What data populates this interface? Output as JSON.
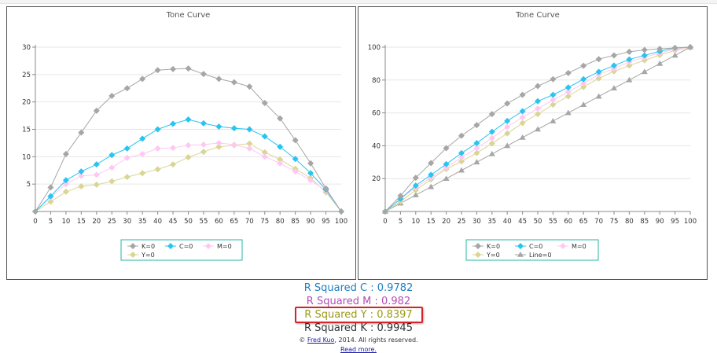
{
  "charts": [
    {
      "chart_data": {
        "type": "line",
        "title": "Tone Curve",
        "x": [
          0,
          5,
          10,
          15,
          20,
          25,
          30,
          35,
          40,
          45,
          50,
          55,
          60,
          65,
          70,
          75,
          80,
          85,
          90,
          95,
          100
        ],
        "ylim": [
          0,
          30
        ],
        "yticks": [
          5,
          10,
          15,
          20,
          25,
          30
        ],
        "legend_position": "bottom",
        "series": [
          {
            "name": "K=0",
            "color": "#a6a6a6",
            "marker": "diamond",
            "values": [
              0,
              4.4,
              10.5,
              14.4,
              18.4,
              21.1,
              22.5,
              24.2,
              25.8,
              26,
              26.1,
              25.1,
              24.2,
              23.6,
              22.8,
              19.8,
              17,
              13,
              8.8,
              4.2,
              0
            ]
          },
          {
            "name": "C=0",
            "color": "#29c4f0",
            "marker": "diamond",
            "values": [
              0,
              2.8,
              5.7,
              7.3,
              8.6,
              10.3,
              11.5,
              13.3,
              15,
              16,
              16.8,
              16.1,
              15.5,
              15.2,
              15,
              13.7,
              11.8,
              9.6,
              7,
              4,
              0
            ]
          },
          {
            "name": "M=0",
            "color": "#ffc8f2",
            "marker": "diamond",
            "values": [
              0,
              2.6,
              5,
              6.5,
              6.7,
              8,
              9.8,
              10.5,
              11.5,
              11.6,
              12.1,
              12.2,
              12.5,
              12.2,
              11.5,
              10,
              8.8,
              7.3,
              5.7,
              3.8,
              0
            ]
          },
          {
            "name": "Y=0",
            "color": "#d9d694",
            "marker": "diamond",
            "values": [
              0,
              1.8,
              3.6,
              4.6,
              4.9,
              5.5,
              6.3,
              7,
              7.7,
              8.6,
              9.9,
              10.9,
              11.8,
              12.1,
              12.4,
              10.8,
              9.5,
              7.8,
              6.1,
              3.5,
              0
            ]
          }
        ]
      }
    },
    {
      "chart_data": {
        "type": "line",
        "title": "Tone Curve",
        "x": [
          0,
          5,
          10,
          15,
          20,
          25,
          30,
          35,
          40,
          45,
          50,
          55,
          60,
          65,
          70,
          75,
          80,
          85,
          90,
          95,
          100
        ],
        "ylim": [
          0,
          100
        ],
        "yticks": [
          20,
          40,
          60,
          80,
          100
        ],
        "legend_position": "bottom",
        "series": [
          {
            "name": "K=0",
            "color": "#a6a6a6",
            "marker": "diamond",
            "values": [
              0,
              9.5,
              20.5,
              29.5,
              38.5,
              46.1,
              52.6,
              59.3,
              65.7,
              71,
              76.3,
              80.5,
              84.3,
              88.7,
              92.7,
              95,
              97.2,
              98.3,
              99,
              99.5,
              100
            ]
          },
          {
            "name": "C=0",
            "color": "#29c4f0",
            "marker": "diamond",
            "values": [
              0,
              7.7,
              15.8,
              22.3,
              28.8,
              35.5,
              41.6,
              48.5,
              55.1,
              61,
              67.1,
              71,
              75.5,
              80.5,
              85,
              88.8,
              92.5,
              95,
              97.5,
              99.5,
              100
            ]
          },
          {
            "name": "M=0",
            "color": "#ffc8f2",
            "marker": "diamond",
            "values": [
              0,
              7.5,
              14.8,
              20.5,
              26.8,
              32.8,
              38.5,
              44.7,
              51.5,
              57.3,
              62.6,
              67.8,
              72.8,
              78,
              83.3,
              87,
              91,
              93.8,
              96.5,
              98.7,
              100
            ]
          },
          {
            "name": "Y=0",
            "color": "#d9d694",
            "marker": "diamond",
            "values": [
              0,
              6,
              13,
              19.5,
              25.8,
              30.5,
              35.6,
              41.4,
              47.5,
              53.8,
              59.3,
              65,
              70.1,
              75.8,
              81,
              85.3,
              88.8,
              92,
              95.2,
              98,
              100
            ]
          },
          {
            "name": "Line=0",
            "color": "#a6a6a6",
            "marker": "triangle",
            "values": [
              0,
              5,
              10,
              15,
              20,
              25,
              30,
              35,
              40,
              45,
              50,
              55,
              60,
              65,
              70,
              75,
              80,
              85,
              90,
              95,
              100
            ]
          }
        ]
      }
    }
  ],
  "stats": [
    {
      "label": "R Squared C : 0.9782",
      "color": "#1f7fc4"
    },
    {
      "label": "R Squared M : 0.982",
      "color": "#b14db8"
    },
    {
      "label": "R Squared Y : 0.8397",
      "color": "#9b9a18"
    },
    {
      "label": "R Squared K : 0.9945",
      "color": "#333333"
    }
  ],
  "footer": {
    "copyright_symbol": "©",
    "author_link": "Fred Kuo",
    "rights_text": ", 2014. All rights reserved.",
    "read_more_link": "Read more."
  }
}
